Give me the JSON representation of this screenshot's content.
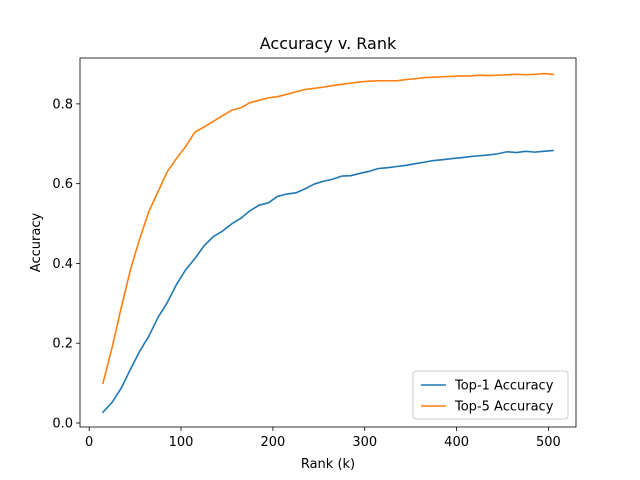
{
  "chart_data": {
    "type": "line",
    "title": "Accuracy v. Rank",
    "xlabel": "Rank (k)",
    "ylabel": "Accuracy",
    "xlim": [
      -10,
      530
    ],
    "ylim": [
      -0.01,
      0.915
    ],
    "xticks": [
      0,
      100,
      200,
      300,
      400,
      500
    ],
    "yticks": [
      0.0,
      0.2,
      0.4,
      0.6,
      0.8
    ],
    "grid": false,
    "legend_position": "lower-right",
    "x": [
      15,
      25,
      35,
      45,
      55,
      65,
      75,
      85,
      95,
      105,
      115,
      125,
      135,
      145,
      155,
      165,
      175,
      185,
      195,
      205,
      215,
      225,
      235,
      245,
      255,
      265,
      275,
      285,
      295,
      305,
      315,
      325,
      335,
      345,
      355,
      365,
      375,
      385,
      395,
      405,
      415,
      425,
      435,
      445,
      455,
      465,
      475,
      485,
      495,
      505
    ],
    "series": [
      {
        "name": "Top-1 Accuracy",
        "color": "#1f77b4",
        "values": [
          0.027,
          0.052,
          0.088,
          0.135,
          0.18,
          0.218,
          0.265,
          0.302,
          0.347,
          0.384,
          0.412,
          0.444,
          0.467,
          0.481,
          0.499,
          0.513,
          0.532,
          0.546,
          0.552,
          0.568,
          0.574,
          0.577,
          0.587,
          0.599,
          0.606,
          0.611,
          0.619,
          0.62,
          0.626,
          0.631,
          0.638,
          0.64,
          0.643,
          0.646,
          0.65,
          0.654,
          0.658,
          0.66,
          0.663,
          0.665,
          0.668,
          0.67,
          0.672,
          0.675,
          0.68,
          0.678,
          0.681,
          0.679,
          0.681,
          0.683
        ]
      },
      {
        "name": "Top-5 Accuracy",
        "color": "#ff7f0e",
        "values": [
          0.1,
          0.19,
          0.29,
          0.385,
          0.462,
          0.53,
          0.58,
          0.63,
          0.663,
          0.693,
          0.729,
          0.742,
          0.756,
          0.77,
          0.784,
          0.79,
          0.803,
          0.809,
          0.815,
          0.818,
          0.824,
          0.83,
          0.836,
          0.839,
          0.842,
          0.846,
          0.849,
          0.852,
          0.855,
          0.857,
          0.858,
          0.858,
          0.858,
          0.861,
          0.863,
          0.866,
          0.867,
          0.868,
          0.869,
          0.87,
          0.87,
          0.872,
          0.871,
          0.872,
          0.873,
          0.874,
          0.873,
          0.874,
          0.876,
          0.874
        ]
      }
    ]
  }
}
